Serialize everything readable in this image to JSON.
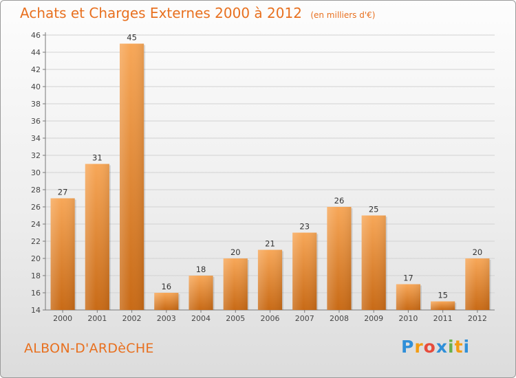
{
  "header": {
    "title": "Achats et Charges Externes 2000 à 2012",
    "unit": "(en milliers d'€)"
  },
  "footer": {
    "city": "ALBON-D'ARDèCHE",
    "logo": [
      "P",
      "r",
      "o",
      "x",
      "i",
      "t",
      "i"
    ]
  },
  "colors": {
    "bar_light": "#f7a758",
    "bar_dark": "#c86a16",
    "accent": "#e8701f"
  },
  "chart_data": {
    "type": "bar",
    "title": "Achats et Charges Externes 2000 à 2012",
    "subtitle": "(en milliers d'€)",
    "categories": [
      "2000",
      "2001",
      "2002",
      "2003",
      "2004",
      "2005",
      "2006",
      "2007",
      "2008",
      "2009",
      "2010",
      "2011",
      "2012"
    ],
    "values": [
      27,
      31,
      45,
      16,
      18,
      20,
      21,
      23,
      26,
      25,
      17,
      15,
      20
    ],
    "ylim": [
      14,
      46
    ],
    "yticks": [
      14,
      16,
      18,
      20,
      22,
      24,
      26,
      28,
      30,
      32,
      34,
      36,
      38,
      40,
      42,
      44,
      46
    ],
    "grid": true,
    "xlabel": "",
    "ylabel": ""
  }
}
